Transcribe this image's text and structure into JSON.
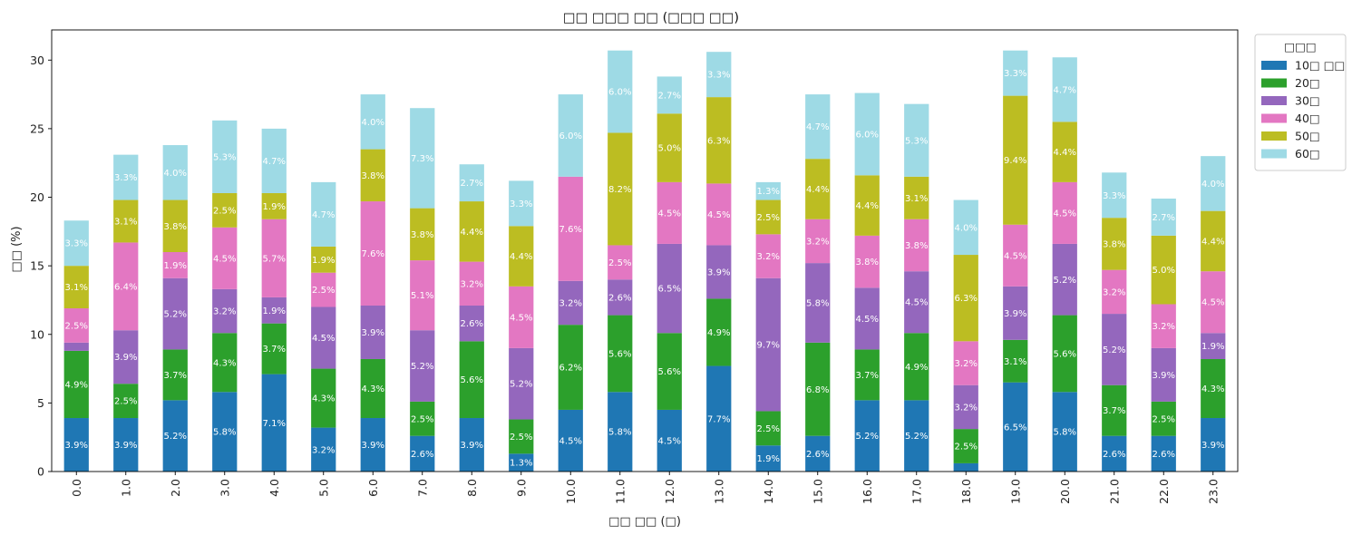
{
  "chart_data": {
    "type": "bar",
    "stacked": true,
    "title": "□□ □□□ □□ (□□□ □□)",
    "xlabel": "□□ □□ (□)",
    "ylabel": "□□ (%)",
    "ylim": [
      0,
      32.2
    ],
    "yticks": [
      0,
      5,
      10,
      15,
      20,
      25,
      30
    ],
    "ytick_labels": [
      "0",
      "5",
      "10",
      "15",
      "20",
      "25",
      "30"
    ],
    "categories": [
      "0.0",
      "1.0",
      "2.0",
      "3.0",
      "4.0",
      "5.0",
      "6.0",
      "7.0",
      "8.0",
      "9.0",
      "10.0",
      "11.0",
      "12.0",
      "13.0",
      "14.0",
      "15.0",
      "16.0",
      "17.0",
      "18.0",
      "19.0",
      "20.0",
      "21.0",
      "22.0",
      "23.0"
    ],
    "legend": {
      "title": "□□□",
      "position": "outside-upper-right"
    },
    "series": [
      {
        "name": "10□ □□",
        "color": "#1f77b4",
        "values": [
          3.9,
          3.9,
          5.2,
          5.8,
          7.1,
          3.2,
          3.9,
          2.6,
          3.9,
          1.3,
          4.5,
          5.8,
          4.5,
          7.7,
          1.9,
          2.6,
          5.2,
          5.2,
          0.6,
          6.5,
          5.8,
          2.6,
          2.6,
          3.9
        ]
      },
      {
        "name": "20□",
        "color": "#2ca02c",
        "values": [
          4.9,
          2.5,
          3.7,
          4.3,
          3.7,
          4.3,
          4.3,
          2.5,
          5.6,
          2.5,
          6.2,
          5.6,
          5.6,
          4.9,
          2.5,
          6.8,
          3.7,
          4.9,
          2.5,
          3.1,
          5.6,
          3.7,
          2.5,
          4.3
        ]
      },
      {
        "name": "30□",
        "color": "#9467bd",
        "values": [
          0.6,
          3.9,
          5.2,
          3.2,
          1.9,
          4.5,
          3.9,
          5.2,
          2.6,
          5.2,
          3.2,
          2.6,
          6.5,
          3.9,
          9.7,
          5.8,
          4.5,
          4.5,
          3.2,
          3.9,
          5.2,
          5.2,
          3.9,
          1.9
        ]
      },
      {
        "name": "40□",
        "color": "#e377c2",
        "values": [
          2.5,
          6.4,
          1.9,
          4.5,
          5.7,
          2.5,
          7.6,
          5.1,
          3.2,
          4.5,
          7.6,
          2.5,
          4.5,
          4.5,
          3.2,
          3.2,
          3.8,
          3.8,
          3.2,
          4.5,
          4.5,
          3.2,
          3.2,
          4.5
        ]
      },
      {
        "name": "50□",
        "color": "#bcbd22",
        "values": [
          3.1,
          3.1,
          3.8,
          2.5,
          1.9,
          1.9,
          3.8,
          3.8,
          4.4,
          4.4,
          0.0,
          8.2,
          5.0,
          6.3,
          2.5,
          4.4,
          4.4,
          3.1,
          6.3,
          9.4,
          4.4,
          3.8,
          5.0,
          4.4
        ]
      },
      {
        "name": "60□",
        "color": "#9edae5",
        "values": [
          3.3,
          3.3,
          4.0,
          5.3,
          4.7,
          4.7,
          4.0,
          7.3,
          2.7,
          3.3,
          6.0,
          6.0,
          2.7,
          3.3,
          1.3,
          4.7,
          6.0,
          5.3,
          4.0,
          3.3,
          4.7,
          3.3,
          2.7,
          4.0
        ]
      }
    ],
    "label_threshold": 1.0,
    "label_suffix": "%"
  }
}
